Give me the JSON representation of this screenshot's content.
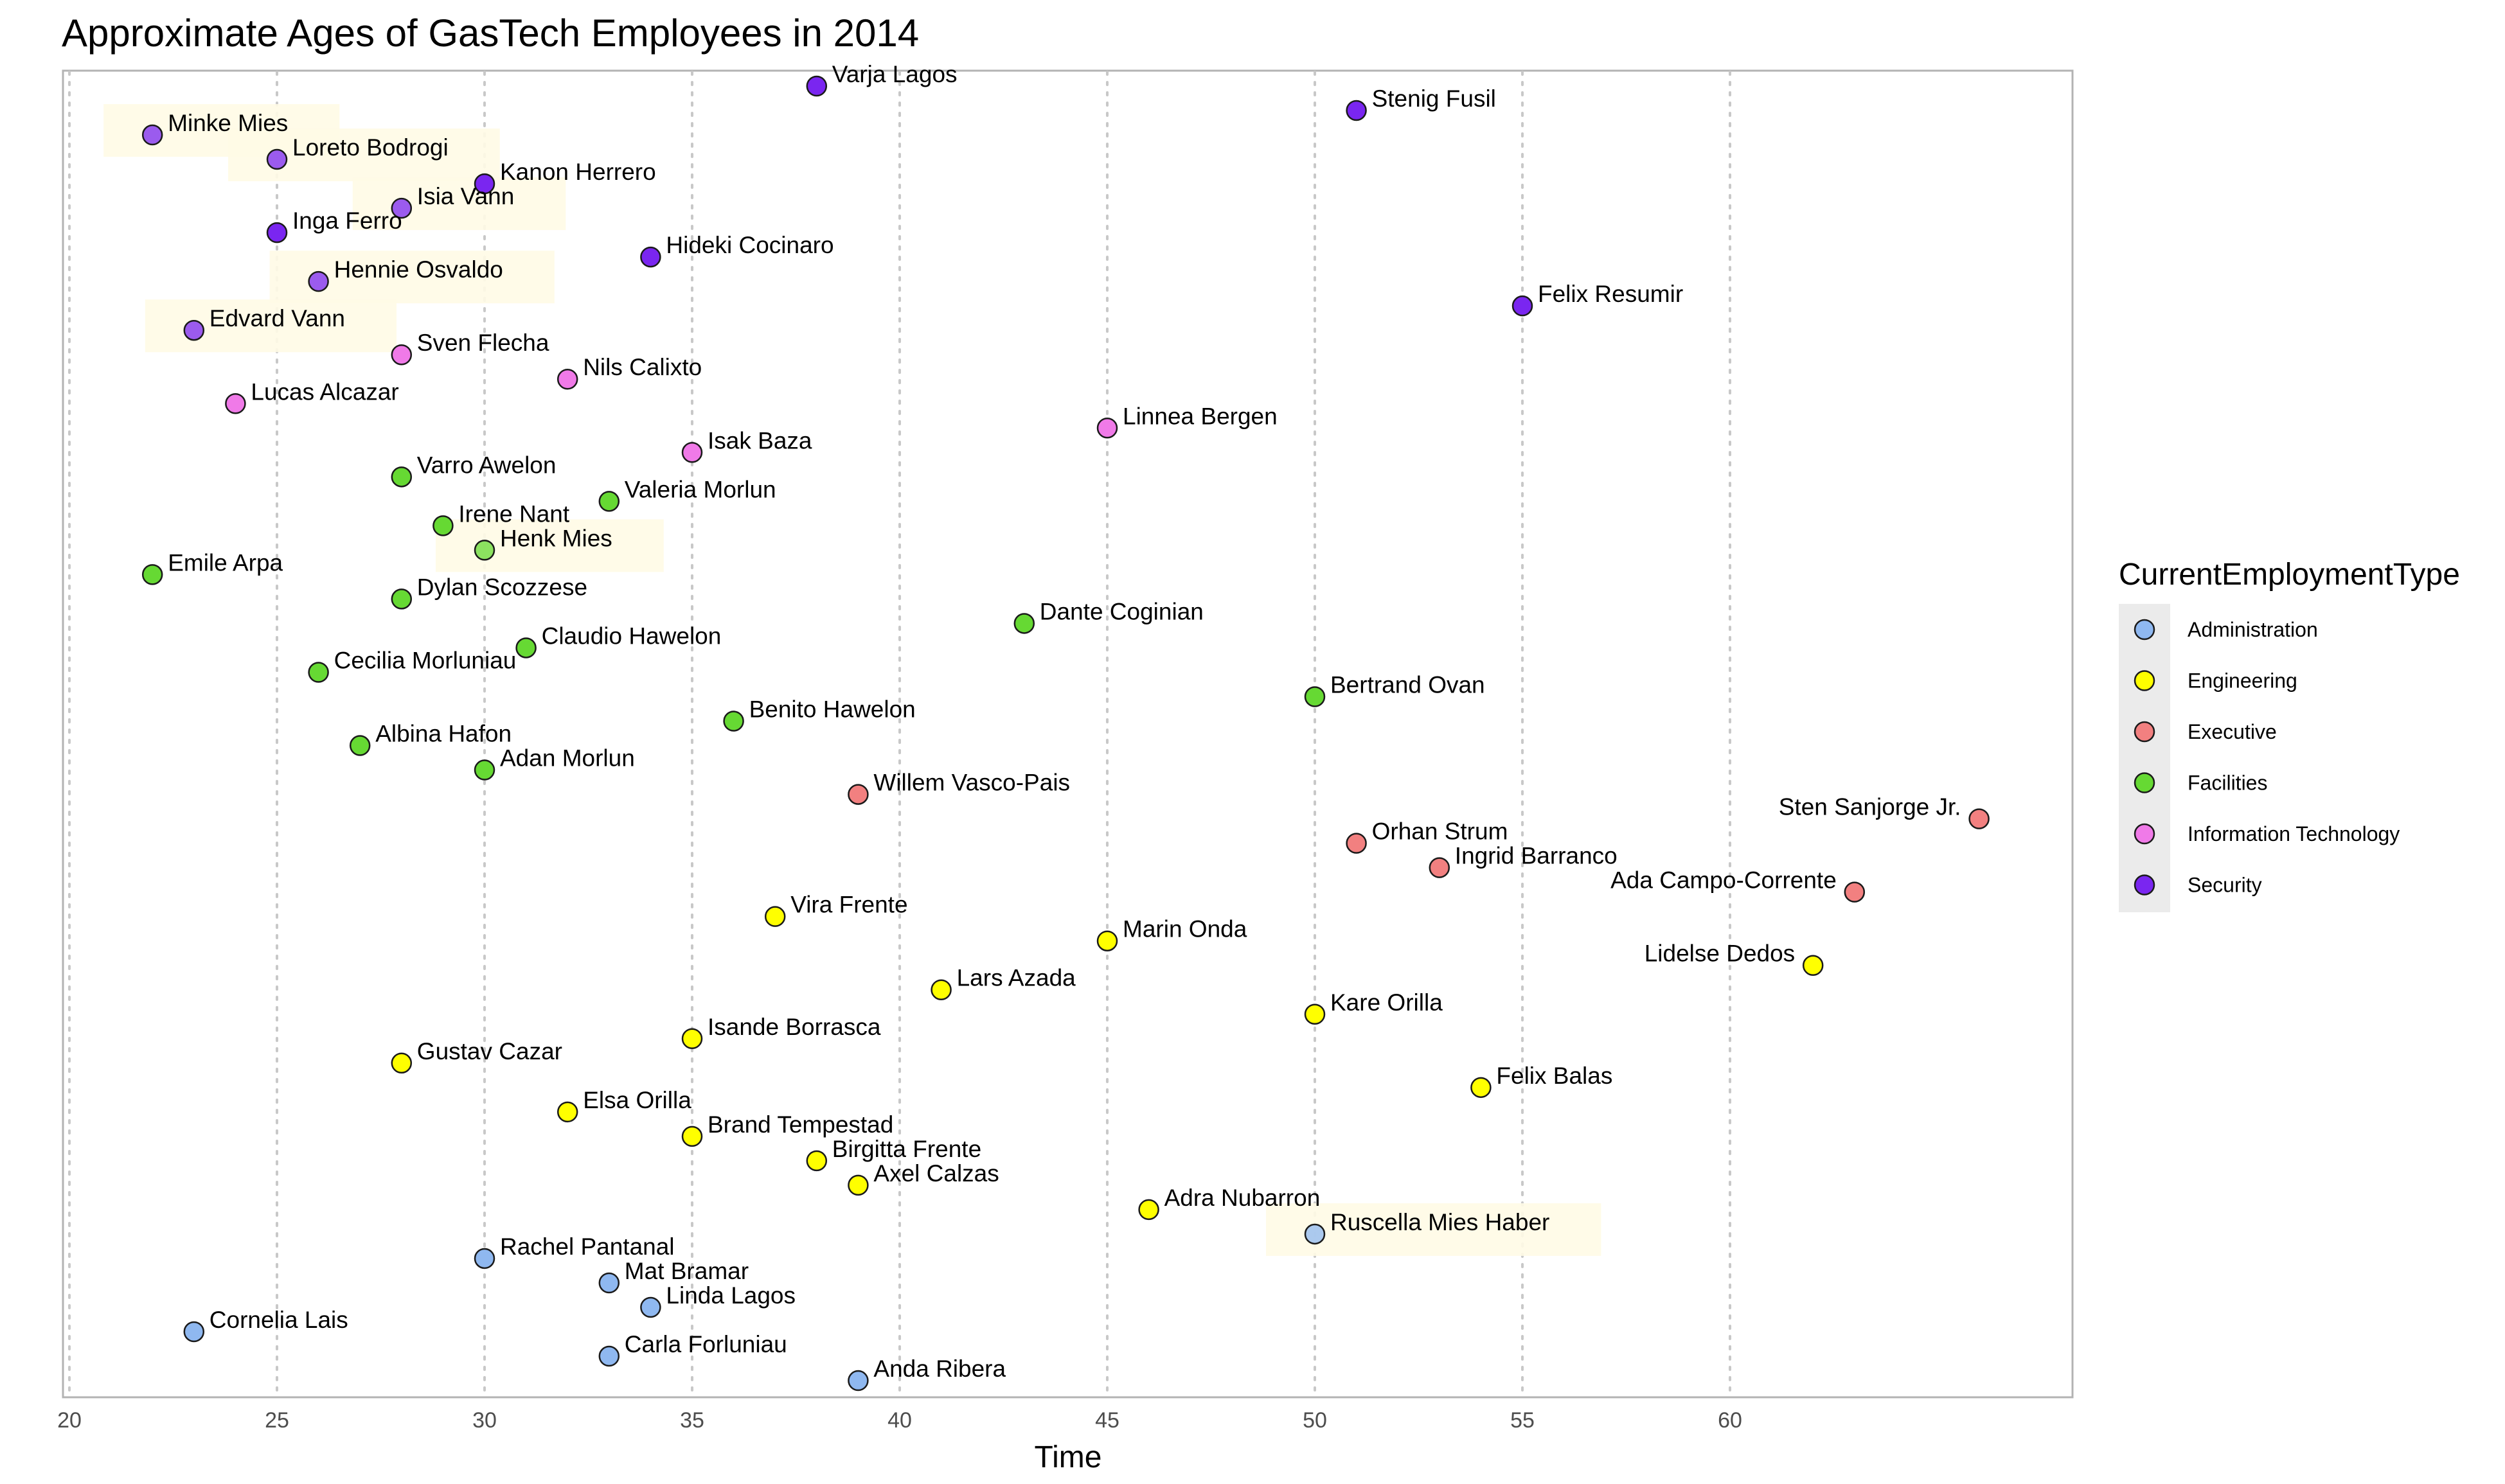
{
  "chart_data": {
    "type": "scatter",
    "title": "Approximate Ages of GasTech Employees in 2014",
    "xlabel": "Time",
    "ylabel": "",
    "xlim": [
      20,
      68
    ],
    "x_ticks": [
      20,
      25,
      30,
      35,
      40,
      45,
      50,
      55,
      60
    ],
    "grid": "vertical dotted",
    "legend": {
      "title": "CurrentEmploymentType",
      "position": "right",
      "entries": [
        {
          "name": "Administration",
          "color": "#8fb8f0"
        },
        {
          "name": "Engineering",
          "color": "#ffff00"
        },
        {
          "name": "Executive",
          "color": "#f28080"
        },
        {
          "name": "Facilities",
          "color": "#66d933"
        },
        {
          "name": "Information Technology",
          "color": "#f07ae8"
        },
        {
          "name": "Security",
          "color": "#7a26f0"
        }
      ]
    },
    "series": [
      {
        "name": "Security",
        "points": [
          {
            "x": 38,
            "label": "Varja Lagos"
          },
          {
            "x": 51,
            "label": "Stenig Fusil"
          },
          {
            "x": 22,
            "label": "Minke Mies",
            "highlighted": true
          },
          {
            "x": 25,
            "label": "Loreto Bodrogi",
            "highlighted": true
          },
          {
            "x": 30,
            "label": "Kanon Herrero"
          },
          {
            "x": 28,
            "label": "Isia Vann",
            "highlighted": true
          },
          {
            "x": 25,
            "label": "Inga Ferro"
          },
          {
            "x": 34,
            "label": "Hideki Cocinaro"
          },
          {
            "x": 26,
            "label": "Hennie Osvaldo",
            "highlighted": true
          },
          {
            "x": 55,
            "label": "Felix Resumir"
          },
          {
            "x": 23,
            "label": "Edvard Vann",
            "highlighted": true
          }
        ]
      },
      {
        "name": "Information Technology",
        "points": [
          {
            "x": 28,
            "label": "Sven Flecha"
          },
          {
            "x": 32,
            "label": "Nils Calixto"
          },
          {
            "x": 24,
            "label": "Lucas Alcazar"
          },
          {
            "x": 45,
            "label": "Linnea Bergen"
          },
          {
            "x": 35,
            "label": "Isak Baza"
          }
        ]
      },
      {
        "name": "Facilities",
        "points": [
          {
            "x": 28,
            "label": "Varro Awelon"
          },
          {
            "x": 33,
            "label": "Valeria Morlun"
          },
          {
            "x": 29,
            "label": "Irene Nant"
          },
          {
            "x": 30,
            "label": "Henk Mies",
            "highlighted": true
          },
          {
            "x": 22,
            "label": "Emile Arpa"
          },
          {
            "x": 28,
            "label": "Dylan Scozzese"
          },
          {
            "x": 43,
            "label": "Dante Coginian"
          },
          {
            "x": 31,
            "label": "Claudio Hawelon"
          },
          {
            "x": 26,
            "label": "Cecilia Morluniau"
          },
          {
            "x": 50,
            "label": "Bertrand Ovan"
          },
          {
            "x": 36,
            "label": "Benito Hawelon"
          },
          {
            "x": 27,
            "label": "Albina Hafon"
          },
          {
            "x": 30,
            "label": "Adan Morlun"
          }
        ]
      },
      {
        "name": "Executive",
        "points": [
          {
            "x": 39,
            "label": "Willem Vasco-Pais"
          },
          {
            "x": 66,
            "label": "Sten Sanjorge Jr."
          },
          {
            "x": 51,
            "label": "Orhan Strum"
          },
          {
            "x": 53,
            "label": "Ingrid Barranco"
          },
          {
            "x": 63,
            "label": "Ada Campo-Corrente"
          }
        ]
      },
      {
        "name": "Engineering",
        "points": [
          {
            "x": 37,
            "label": "Vira Frente"
          },
          {
            "x": 45,
            "label": "Marin Onda"
          },
          {
            "x": 62,
            "label": "Lidelse Dedos"
          },
          {
            "x": 41,
            "label": "Lars Azada"
          },
          {
            "x": 50,
            "label": "Kare Orilla"
          },
          {
            "x": 35,
            "label": "Isande Borrasca"
          },
          {
            "x": 28,
            "label": "Gustav Cazar"
          },
          {
            "x": 54,
            "label": "Felix Balas"
          },
          {
            "x": 32,
            "label": "Elsa Orilla"
          },
          {
            "x": 35,
            "label": "Brand Tempestad"
          },
          {
            "x": 38,
            "label": "Birgitta Frente"
          },
          {
            "x": 39,
            "label": "Axel Calzas"
          },
          {
            "x": 46,
            "label": "Adra Nubarron"
          }
        ]
      },
      {
        "name": "Administration",
        "points": [
          {
            "x": 50,
            "label": "Ruscella Mies Haber",
            "highlighted": true
          },
          {
            "x": 30,
            "label": "Rachel Pantanal"
          },
          {
            "x": 33,
            "label": "Mat Bramar"
          },
          {
            "x": 34,
            "label": "Linda Lagos"
          },
          {
            "x": 23,
            "label": "Cornelia Lais"
          },
          {
            "x": 33,
            "label": "Carla Forluniau"
          },
          {
            "x": 39,
            "label": "Anda Ribera"
          }
        ]
      }
    ]
  }
}
